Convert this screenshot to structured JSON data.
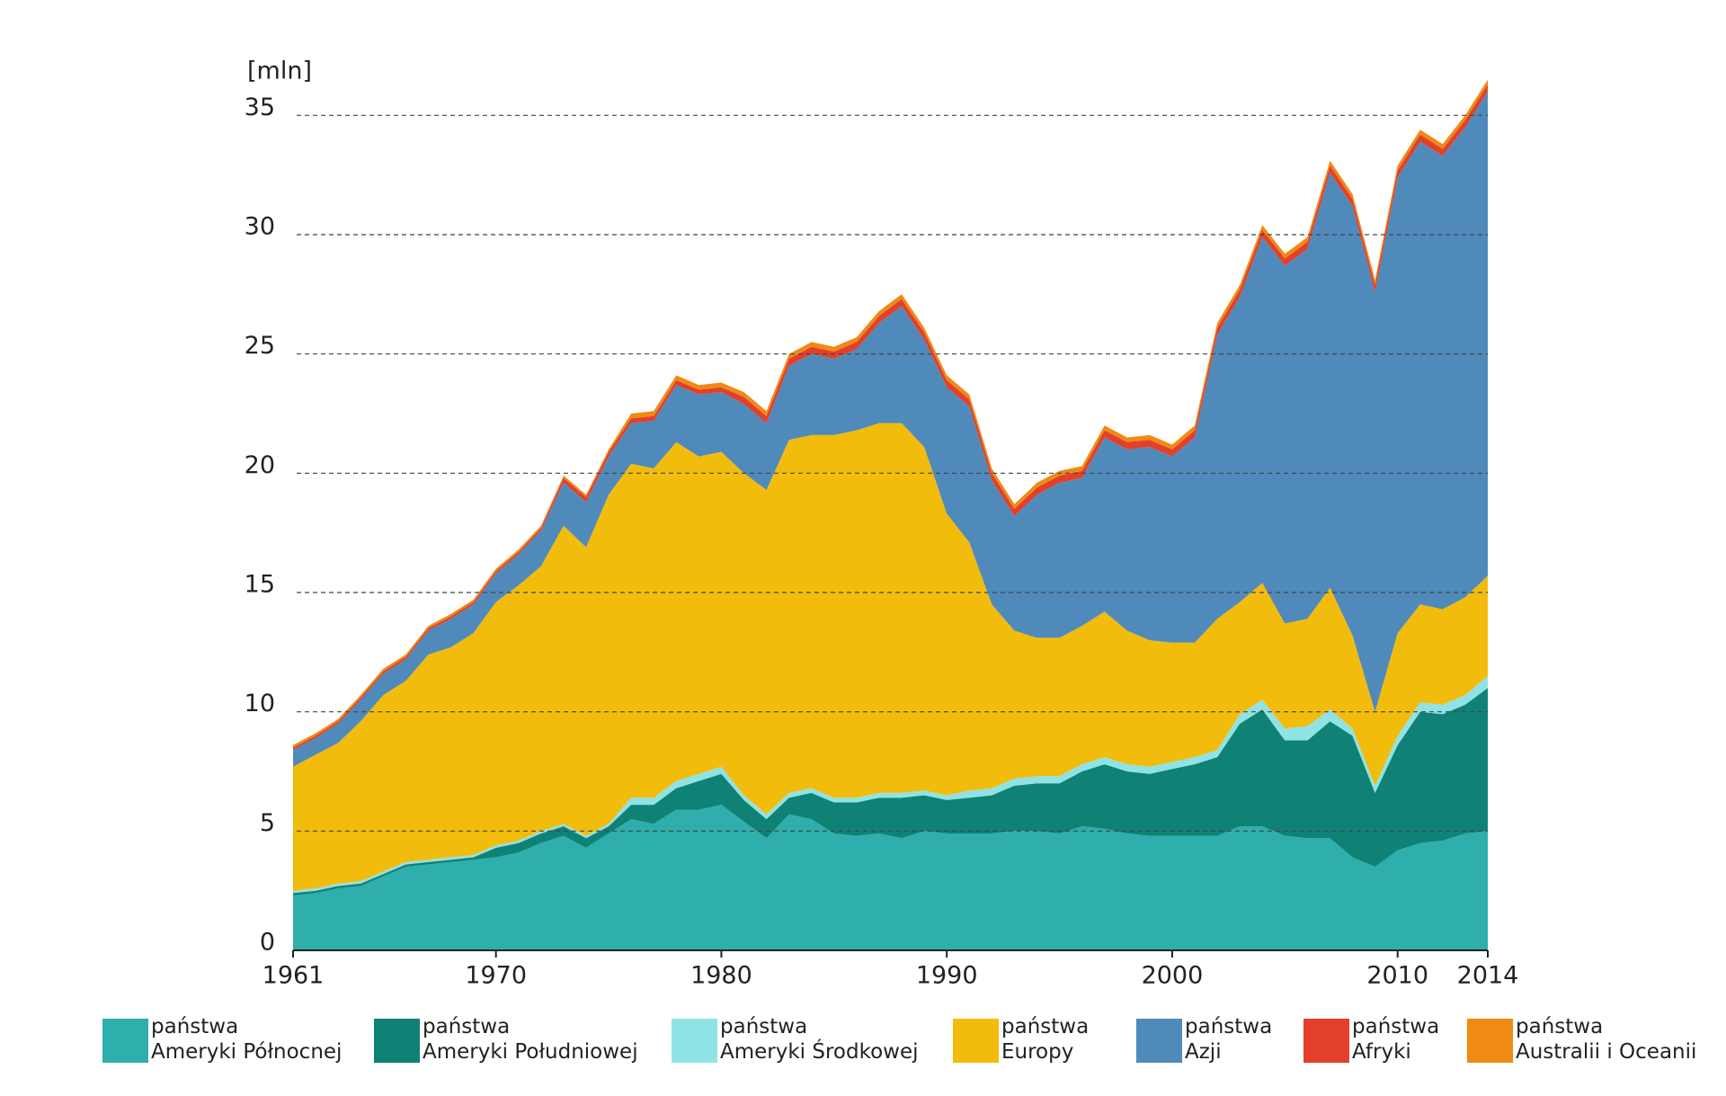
{
  "chart_data": {
    "type": "stacked-area",
    "y_label": "[mln]",
    "x": [
      1961,
      1962,
      1963,
      1964,
      1965,
      1966,
      1967,
      1968,
      1969,
      1970,
      1971,
      1972,
      1973,
      1974,
      1975,
      1976,
      1977,
      1978,
      1979,
      1980,
      1981,
      1982,
      1983,
      1984,
      1985,
      1986,
      1987,
      1988,
      1989,
      1990,
      1991,
      1992,
      1993,
      1994,
      1995,
      1996,
      1997,
      1998,
      1999,
      2000,
      2001,
      2002,
      2003,
      2004,
      2005,
      2006,
      2007,
      2008,
      2009,
      2010,
      2011,
      2012,
      2013,
      2014
    ],
    "xlim": [
      1961,
      2014
    ],
    "xticks": [
      1961,
      1970,
      1980,
      1990,
      2000,
      2010,
      2014
    ],
    "ylim": [
      0,
      37.5
    ],
    "yticks": [
      0,
      5,
      10,
      15,
      20,
      25,
      30,
      35
    ],
    "grid": true,
    "series": [
      {
        "name": "państwa\nAmeryki Północnej",
        "color": "#2eaeac",
        "values": [
          2.3,
          2.4,
          2.6,
          2.7,
          3.1,
          3.5,
          3.6,
          3.7,
          3.8,
          3.9,
          4.1,
          4.5,
          4.8,
          4.3,
          4.9,
          5.5,
          5.3,
          5.9,
          5.9,
          6.1,
          5.4,
          4.7,
          5.7,
          5.5,
          4.9,
          4.8,
          4.9,
          4.7,
          5.0,
          4.9,
          4.9,
          4.9,
          5.0,
          5.0,
          4.9,
          5.2,
          5.1,
          4.9,
          4.8,
          4.8,
          4.8,
          4.8,
          5.2,
          5.2,
          4.8,
          4.7,
          4.7,
          3.9,
          3.5,
          4.2,
          4.5,
          4.6,
          4.9,
          5.0
        ]
      },
      {
        "name": "państwa\nAmeryki Południowej",
        "color": "#0f8275",
        "values": [
          0.1,
          0.1,
          0.1,
          0.1,
          0.1,
          0.1,
          0.1,
          0.1,
          0.1,
          0.4,
          0.4,
          0.4,
          0.4,
          0.4,
          0.3,
          0.6,
          0.8,
          0.9,
          1.2,
          1.3,
          0.9,
          0.8,
          0.7,
          1.1,
          1.3,
          1.4,
          1.5,
          1.7,
          1.5,
          1.4,
          1.5,
          1.6,
          1.9,
          2.0,
          2.1,
          2.3,
          2.7,
          2.6,
          2.6,
          2.8,
          3.0,
          3.3,
          4.3,
          4.9,
          4.0,
          4.1,
          4.9,
          5.1,
          3.1,
          4.4,
          5.5,
          5.3,
          5.4,
          6.0
        ]
      },
      {
        "name": "państwa\nAmeryki Środkowej",
        "color": "#90e3e5",
        "values": [
          0.1,
          0.1,
          0.1,
          0.1,
          0.1,
          0.1,
          0.1,
          0.1,
          0.1,
          0.1,
          0.1,
          0.1,
          0.1,
          0.1,
          0.1,
          0.3,
          0.3,
          0.3,
          0.3,
          0.3,
          0.2,
          0.2,
          0.2,
          0.2,
          0.2,
          0.2,
          0.2,
          0.2,
          0.2,
          0.2,
          0.3,
          0.3,
          0.3,
          0.3,
          0.3,
          0.3,
          0.3,
          0.3,
          0.3,
          0.3,
          0.3,
          0.3,
          0.4,
          0.4,
          0.5,
          0.6,
          0.5,
          0.3,
          0.3,
          0.4,
          0.4,
          0.4,
          0.4,
          0.5
        ]
      },
      {
        "name": "państwa\nEuropy",
        "color": "#f2bc0d",
        "values": [
          5.2,
          5.6,
          5.9,
          6.7,
          7.4,
          7.6,
          8.6,
          8.8,
          9.3,
          10.2,
          10.7,
          11.1,
          12.5,
          12.1,
          13.8,
          14.0,
          13.8,
          14.2,
          13.3,
          13.2,
          13.5,
          13.6,
          14.8,
          14.8,
          15.2,
          15.4,
          15.5,
          15.5,
          14.4,
          11.8,
          10.4,
          7.7,
          6.2,
          5.8,
          5.8,
          5.8,
          6.1,
          5.6,
          5.3,
          5.0,
          4.8,
          5.5,
          4.7,
          4.9,
          4.4,
          4.5,
          5.1,
          3.9,
          3.1,
          4.3,
          4.1,
          4.0,
          4.1,
          4.2
        ]
      },
      {
        "name": "państwa\nAzji",
        "color": "#4f8aba",
        "values": [
          0.7,
          0.7,
          0.8,
          0.9,
          0.9,
          0.9,
          1.0,
          1.2,
          1.2,
          1.2,
          1.3,
          1.5,
          1.8,
          1.9,
          1.6,
          1.7,
          2.0,
          2.4,
          2.6,
          2.5,
          2.9,
          2.8,
          3.1,
          3.4,
          3.2,
          3.4,
          4.2,
          4.9,
          4.5,
          5.3,
          5.7,
          5.2,
          4.8,
          6.0,
          6.5,
          6.2,
          7.3,
          7.6,
          8.1,
          7.8,
          8.6,
          11.9,
          12.8,
          14.5,
          15.0,
          15.5,
          17.4,
          18.0,
          17.6,
          19.1,
          19.4,
          19.0,
          19.7,
          20.3
        ]
      },
      {
        "name": "państwa\nAfryki",
        "color": "#e2402a",
        "values": [
          0.1,
          0.1,
          0.1,
          0.1,
          0.1,
          0.1,
          0.1,
          0.1,
          0.1,
          0.1,
          0.1,
          0.1,
          0.2,
          0.2,
          0.2,
          0.2,
          0.2,
          0.2,
          0.2,
          0.2,
          0.3,
          0.3,
          0.3,
          0.3,
          0.3,
          0.3,
          0.3,
          0.3,
          0.3,
          0.3,
          0.3,
          0.3,
          0.3,
          0.3,
          0.3,
          0.3,
          0.3,
          0.3,
          0.3,
          0.3,
          0.3,
          0.3,
          0.3,
          0.3,
          0.3,
          0.3,
          0.3,
          0.3,
          0.3,
          0.3,
          0.3,
          0.3,
          0.3,
          0.3
        ]
      },
      {
        "name": "państwa\nAustralii i Oceanii",
        "color": "#ef8a12",
        "values": [
          0.1,
          0.1,
          0.1,
          0.1,
          0.1,
          0.1,
          0.1,
          0.1,
          0.1,
          0.1,
          0.1,
          0.1,
          0.1,
          0.1,
          0.1,
          0.2,
          0.2,
          0.2,
          0.2,
          0.2,
          0.2,
          0.2,
          0.2,
          0.2,
          0.2,
          0.2,
          0.2,
          0.2,
          0.2,
          0.2,
          0.2,
          0.2,
          0.2,
          0.2,
          0.2,
          0.2,
          0.2,
          0.2,
          0.2,
          0.2,
          0.2,
          0.2,
          0.2,
          0.2,
          0.2,
          0.2,
          0.2,
          0.2,
          0.2,
          0.2,
          0.2,
          0.2,
          0.2,
          0.2
        ]
      }
    ]
  }
}
